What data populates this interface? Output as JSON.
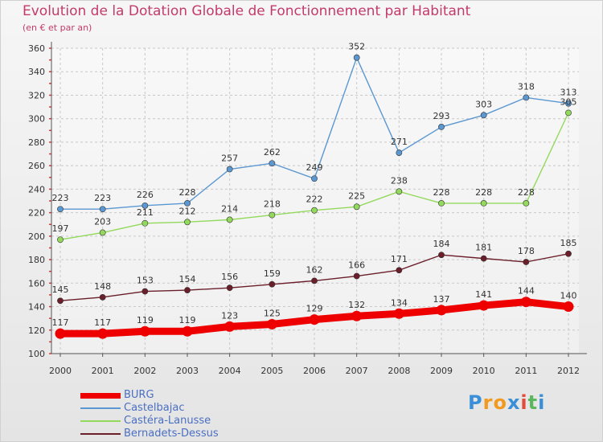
{
  "header": {
    "title": "Evolution de la Dotation Globale de Fonctionnement par Habitant",
    "subtitle": "(en € et par an)"
  },
  "logo": {
    "letters": [
      "P",
      "r",
      "o",
      "x",
      "i",
      "t",
      "i"
    ],
    "colors": [
      "#3a8fd8",
      "#f29a1f",
      "#f29a1f",
      "#3a8fd8",
      "#e24a3b",
      "#5cb85c",
      "#3a8fd8"
    ]
  },
  "chart_data": {
    "type": "line",
    "title": "Evolution de la Dotation Globale de Fonctionnement par Habitant",
    "subtitle": "(en € et par an)",
    "x": [
      "2000",
      "2001",
      "2002",
      "2003",
      "2004",
      "2005",
      "2006",
      "2007",
      "2008",
      "2009",
      "2010",
      "2011",
      "2012"
    ],
    "ylim": [
      100,
      360
    ],
    "yticks": [
      100,
      120,
      140,
      160,
      180,
      200,
      220,
      240,
      260,
      280,
      300,
      320,
      340,
      360
    ],
    "grid": true,
    "legend_position": "bottom-left",
    "series": [
      {
        "name": "BURG",
        "color": "#ee0000",
        "emphasis": true,
        "values": [
          117,
          117,
          119,
          119,
          123,
          125,
          129,
          132,
          134,
          137,
          141,
          144,
          140
        ]
      },
      {
        "name": "Castelbajac",
        "color": "#5b97d1",
        "emphasis": false,
        "values": [
          223,
          223,
          226,
          228,
          257,
          262,
          249,
          352,
          271,
          293,
          303,
          318,
          313
        ]
      },
      {
        "name": "Castéra-Lanusse",
        "color": "#93d95c",
        "emphasis": false,
        "values": [
          197,
          203,
          211,
          212,
          214,
          218,
          222,
          225,
          238,
          228,
          228,
          228,
          305
        ]
      },
      {
        "name": "Bernadets-Dessus",
        "color": "#6b1f2a",
        "emphasis": false,
        "values": [
          145,
          148,
          153,
          154,
          156,
          159,
          162,
          166,
          171,
          184,
          181,
          178,
          185
        ]
      }
    ]
  }
}
